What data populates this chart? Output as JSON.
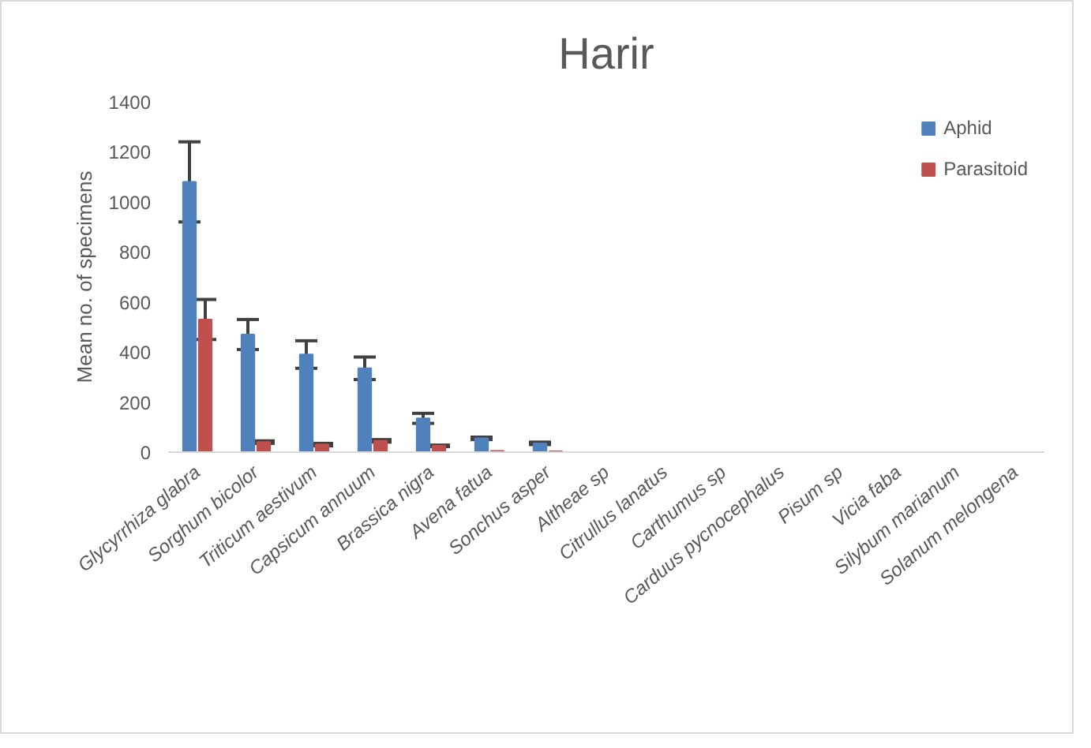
{
  "chart_data": {
    "type": "bar",
    "title": "Harir",
    "ylabel": "Mean no. of specimens",
    "categories": [
      "Glycyrrhiza glabra",
      "Sorghum bicolor",
      "Triticum aestivum",
      "Capsicum annuum",
      "Brassica nigra",
      "Avena fatua",
      "Sonchus asper",
      "Altheae sp",
      "Citrullus lanatus",
      "Carthumus sp",
      "Carduus pycnocephalus",
      "Pisum sp",
      "Vicia faba",
      "Silybum marianum",
      "Solanum melongena"
    ],
    "series": [
      {
        "name": "Aphid",
        "color": "#4f81bd",
        "values": [
          1080,
          470,
          390,
          335,
          135,
          55,
          35,
          0,
          0,
          0,
          0,
          0,
          0,
          0,
          0
        ],
        "errors": [
          160,
          60,
          55,
          45,
          20,
          5,
          5,
          null,
          null,
          null,
          null,
          null,
          null,
          null,
          null
        ]
      },
      {
        "name": "Parasitoid",
        "color": "#c0504d",
        "values": [
          530,
          40,
          30,
          45,
          25,
          5,
          3,
          0,
          0,
          0,
          0,
          0,
          0,
          0,
          0
        ],
        "errors": [
          80,
          5,
          5,
          5,
          3,
          null,
          null,
          null,
          null,
          null,
          null,
          null,
          null,
          null,
          null
        ]
      }
    ],
    "ylim": [
      0,
      1400
    ],
    "yticks": [
      0,
      200,
      400,
      600,
      800,
      1000,
      1200,
      1400
    ],
    "grid": false,
    "legend": "top right"
  }
}
